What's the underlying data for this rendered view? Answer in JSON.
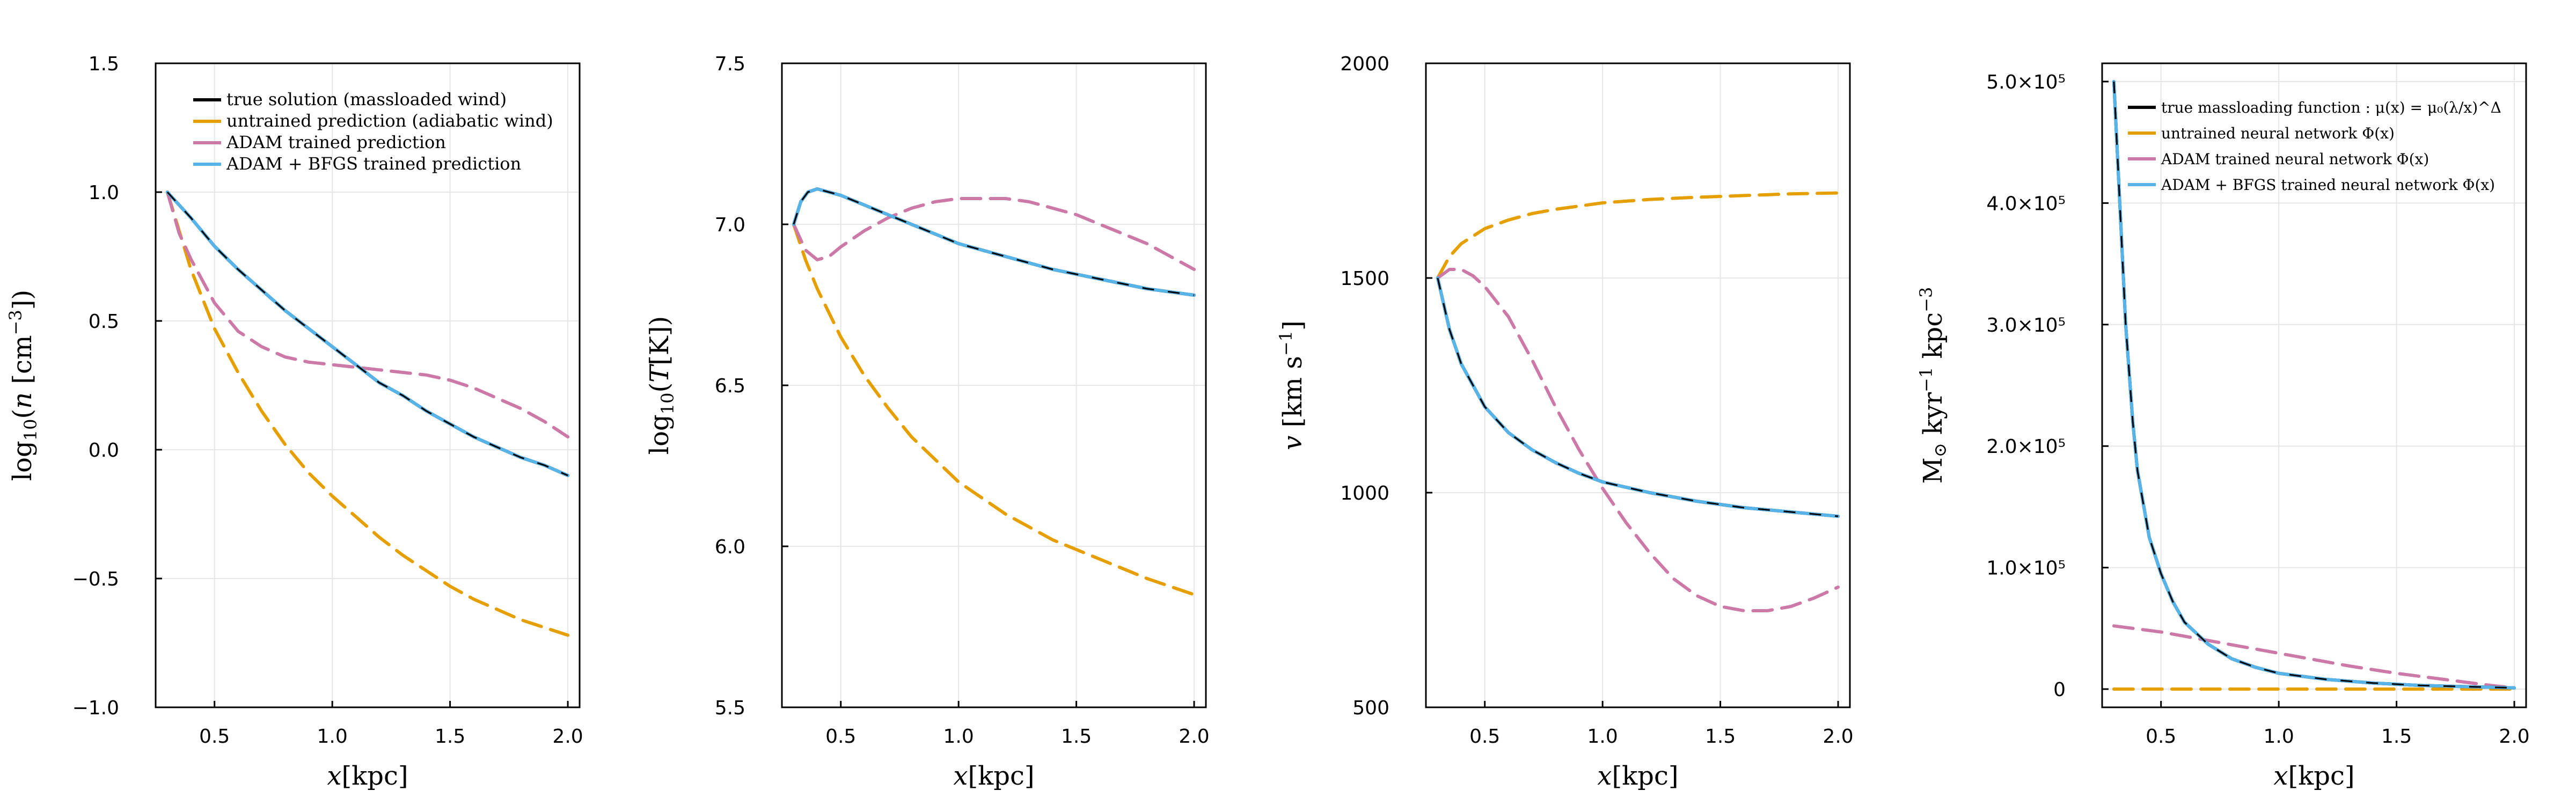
{
  "colors": {
    "true": "#000000",
    "untrained": "#e69f00",
    "adam": "#cc79a7",
    "bfgs": "#56b4e9"
  },
  "chart_data": [
    {
      "type": "line",
      "name": "density",
      "xlabel": "x[kpc]",
      "ylabel": "log10(n [cm^-3])",
      "xlim": [
        0.25,
        2.05
      ],
      "ylim": [
        -1.0,
        1.5
      ],
      "xticks": [
        0.5,
        1.0,
        1.5,
        2.0
      ],
      "xtick_labels": [
        "0.5",
        "1.0",
        "1.5",
        "2.0"
      ],
      "yticks": [
        -1.0,
        -0.5,
        0.0,
        0.5,
        1.0,
        1.5
      ],
      "ytick_labels": [
        "−1.0",
        "−0.5",
        "0.0",
        "0.5",
        "1.0",
        "1.5"
      ],
      "legend": {
        "position": "top-right",
        "entries": [
          "true solution (massloaded wind)",
          "untrained prediction (adiabatic wind)",
          "ADAM trained prediction",
          "ADAM + BFGS trained prediction"
        ]
      },
      "series": [
        {
          "name": "true",
          "x": [
            0.3,
            0.4,
            0.5,
            0.6,
            0.7,
            0.8,
            0.9,
            1.0,
            1.1,
            1.2,
            1.3,
            1.4,
            1.5,
            1.6,
            1.7,
            1.8,
            1.9,
            2.0
          ],
          "y": [
            1.0,
            0.9,
            0.79,
            0.7,
            0.62,
            0.54,
            0.47,
            0.4,
            0.33,
            0.26,
            0.21,
            0.15,
            0.1,
            0.05,
            0.01,
            -0.03,
            -0.06,
            -0.1
          ]
        },
        {
          "name": "untrained",
          "x": [
            0.3,
            0.4,
            0.5,
            0.6,
            0.7,
            0.8,
            0.9,
            1.0,
            1.1,
            1.2,
            1.3,
            1.4,
            1.5,
            1.6,
            1.7,
            1.8,
            1.9,
            2.0
          ],
          "y": [
            1.0,
            0.7,
            0.47,
            0.3,
            0.15,
            0.02,
            -0.09,
            -0.18,
            -0.26,
            -0.34,
            -0.41,
            -0.47,
            -0.53,
            -0.58,
            -0.62,
            -0.66,
            -0.69,
            -0.72
          ]
        },
        {
          "name": "adam",
          "x": [
            0.3,
            0.35,
            0.4,
            0.5,
            0.6,
            0.7,
            0.8,
            0.9,
            1.0,
            1.1,
            1.2,
            1.3,
            1.4,
            1.5,
            1.6,
            1.7,
            1.8,
            1.9,
            2.0
          ],
          "y": [
            1.0,
            0.84,
            0.74,
            0.57,
            0.46,
            0.4,
            0.36,
            0.34,
            0.33,
            0.32,
            0.31,
            0.3,
            0.29,
            0.27,
            0.24,
            0.2,
            0.16,
            0.11,
            0.05
          ]
        },
        {
          "name": "bfgs",
          "x": [
            0.3,
            0.4,
            0.5,
            0.6,
            0.7,
            0.8,
            0.9,
            1.0,
            1.1,
            1.2,
            1.3,
            1.4,
            1.5,
            1.6,
            1.7,
            1.8,
            1.9,
            2.0
          ],
          "y": [
            1.0,
            0.9,
            0.79,
            0.7,
            0.62,
            0.54,
            0.47,
            0.4,
            0.33,
            0.26,
            0.21,
            0.15,
            0.1,
            0.05,
            0.01,
            -0.03,
            -0.06,
            -0.1
          ]
        }
      ]
    },
    {
      "type": "line",
      "name": "temperature",
      "xlabel": "x[kpc]",
      "ylabel": "log10(T[K])",
      "xlim": [
        0.25,
        2.05
      ],
      "ylim": [
        5.5,
        7.5
      ],
      "xticks": [
        0.5,
        1.0,
        1.5,
        2.0
      ],
      "xtick_labels": [
        "0.5",
        "1.0",
        "1.5",
        "2.0"
      ],
      "yticks": [
        5.5,
        6.0,
        6.5,
        7.0,
        7.5
      ],
      "ytick_labels": [
        "5.5",
        "6.0",
        "6.5",
        "7.0",
        "7.5"
      ],
      "series": [
        {
          "name": "true",
          "x": [
            0.3,
            0.33,
            0.36,
            0.4,
            0.45,
            0.5,
            0.6,
            0.7,
            0.8,
            0.9,
            1.0,
            1.2,
            1.4,
            1.6,
            1.8,
            2.0
          ],
          "y": [
            7.0,
            7.07,
            7.1,
            7.11,
            7.1,
            7.09,
            7.06,
            7.03,
            7.0,
            6.97,
            6.94,
            6.9,
            6.86,
            6.83,
            6.8,
            6.78
          ]
        },
        {
          "name": "untrained",
          "x": [
            0.3,
            0.35,
            0.4,
            0.5,
            0.6,
            0.7,
            0.8,
            0.9,
            1.0,
            1.2,
            1.4,
            1.6,
            1.8,
            2.0
          ],
          "y": [
            7.0,
            6.89,
            6.8,
            6.65,
            6.53,
            6.43,
            6.34,
            6.27,
            6.2,
            6.1,
            6.02,
            5.96,
            5.9,
            5.85
          ]
        },
        {
          "name": "adam",
          "x": [
            0.3,
            0.35,
            0.4,
            0.45,
            0.5,
            0.6,
            0.7,
            0.8,
            0.9,
            1.0,
            1.1,
            1.2,
            1.3,
            1.4,
            1.5,
            1.6,
            1.7,
            1.8,
            1.9,
            2.0
          ],
          "y": [
            7.0,
            6.92,
            6.89,
            6.9,
            6.93,
            6.98,
            7.02,
            7.05,
            7.07,
            7.08,
            7.08,
            7.08,
            7.07,
            7.05,
            7.03,
            7.0,
            6.97,
            6.94,
            6.9,
            6.86
          ]
        },
        {
          "name": "bfgs",
          "x": [
            0.3,
            0.33,
            0.36,
            0.4,
            0.45,
            0.5,
            0.6,
            0.7,
            0.8,
            0.9,
            1.0,
            1.2,
            1.4,
            1.6,
            1.8,
            2.0
          ],
          "y": [
            7.0,
            7.07,
            7.1,
            7.11,
            7.1,
            7.09,
            7.06,
            7.03,
            7.0,
            6.97,
            6.94,
            6.9,
            6.86,
            6.83,
            6.8,
            6.78
          ]
        }
      ]
    },
    {
      "type": "line",
      "name": "velocity",
      "xlabel": "x[kpc]",
      "ylabel": "v [km s^-1]",
      "xlim": [
        0.25,
        2.05
      ],
      "ylim": [
        500,
        2000
      ],
      "xticks": [
        0.5,
        1.0,
        1.5,
        2.0
      ],
      "xtick_labels": [
        "0.5",
        "1.0",
        "1.5",
        "2.0"
      ],
      "yticks": [
        500,
        1000,
        1500,
        2000
      ],
      "ytick_labels": [
        "500",
        "1000",
        "1500",
        "2000"
      ],
      "series": [
        {
          "name": "true",
          "x": [
            0.3,
            0.35,
            0.4,
            0.5,
            0.6,
            0.7,
            0.8,
            0.9,
            1.0,
            1.2,
            1.4,
            1.6,
            1.8,
            2.0
          ],
          "y": [
            1500,
            1380,
            1300,
            1200,
            1140,
            1100,
            1070,
            1045,
            1025,
            1000,
            980,
            965,
            955,
            945
          ]
        },
        {
          "name": "untrained",
          "x": [
            0.3,
            0.35,
            0.4,
            0.5,
            0.6,
            0.7,
            0.8,
            1.0,
            1.2,
            1.4,
            1.6,
            1.8,
            2.0
          ],
          "y": [
            1500,
            1550,
            1580,
            1615,
            1635,
            1650,
            1660,
            1675,
            1683,
            1688,
            1692,
            1696,
            1698
          ]
        },
        {
          "name": "adam",
          "x": [
            0.3,
            0.35,
            0.4,
            0.45,
            0.5,
            0.6,
            0.7,
            0.8,
            0.9,
            1.0,
            1.1,
            1.2,
            1.3,
            1.4,
            1.5,
            1.6,
            1.7,
            1.8,
            1.9,
            2.0
          ],
          "y": [
            1500,
            1520,
            1520,
            1505,
            1480,
            1410,
            1310,
            1200,
            1100,
            1010,
            930,
            860,
            800,
            760,
            735,
            725,
            725,
            735,
            755,
            780
          ]
        },
        {
          "name": "bfgs",
          "x": [
            0.3,
            0.35,
            0.4,
            0.5,
            0.6,
            0.7,
            0.8,
            0.9,
            1.0,
            1.2,
            1.4,
            1.6,
            1.8,
            2.0
          ],
          "y": [
            1500,
            1380,
            1300,
            1200,
            1140,
            1100,
            1070,
            1045,
            1025,
            1000,
            980,
            965,
            955,
            945
          ]
        }
      ]
    },
    {
      "type": "line",
      "name": "mass-loading",
      "xlabel": "x[kpc]",
      "ylabel": "M⊙ kyr^-1 kpc^-3",
      "xlim": [
        0.25,
        2.05
      ],
      "ylim": [
        -15000,
        515000
      ],
      "xticks": [
        0.5,
        1.0,
        1.5,
        2.0
      ],
      "xtick_labels": [
        "0.5",
        "1.0",
        "1.5",
        "2.0"
      ],
      "yticks": [
        0,
        100000,
        200000,
        300000,
        400000,
        500000
      ],
      "ytick_labels": [
        "0",
        "1.0×10⁵",
        "2.0×10⁵",
        "3.0×10⁵",
        "4.0×10⁵",
        "5.0×10⁵"
      ],
      "legend": {
        "position": "top-right",
        "entries": [
          "true massloading function : μ(x) = μ₀(λ/x)^Δ",
          "untrained neural network Φ(x)",
          "ADAM trained neural network Φ(x)",
          "ADAM + BFGS trained neural network Φ(x)"
        ]
      },
      "series": [
        {
          "name": "true",
          "x": [
            0.3,
            0.32,
            0.35,
            0.38,
            0.4,
            0.45,
            0.5,
            0.55,
            0.6,
            0.7,
            0.8,
            0.9,
            1.0,
            1.2,
            1.4,
            1.6,
            1.8,
            2.0
          ],
          "y": [
            500000,
            420000,
            300000,
            220000,
            180000,
            125000,
            95000,
            72000,
            55000,
            37000,
            25000,
            18000,
            13000,
            8000,
            5000,
            3000,
            2000,
            1000
          ]
        },
        {
          "name": "untrained",
          "x": [
            0.3,
            2.0
          ],
          "y": [
            0,
            0
          ]
        },
        {
          "name": "adam",
          "x": [
            0.3,
            0.5,
            0.7,
            0.9,
            1.1,
            1.3,
            1.5,
            1.7,
            1.9,
            2.0
          ],
          "y": [
            52000,
            47000,
            40000,
            33000,
            26000,
            19000,
            13000,
            8000,
            3000,
            1000
          ]
        },
        {
          "name": "bfgs",
          "x": [
            0.3,
            0.32,
            0.35,
            0.38,
            0.4,
            0.45,
            0.5,
            0.55,
            0.6,
            0.7,
            0.8,
            0.9,
            1.0,
            1.2,
            1.4,
            1.6,
            1.8,
            2.0
          ],
          "y": [
            500000,
            420000,
            300000,
            220000,
            180000,
            125000,
            95000,
            72000,
            55000,
            37000,
            25000,
            18000,
            13000,
            8000,
            5000,
            3000,
            2000,
            1000
          ]
        }
      ]
    }
  ]
}
